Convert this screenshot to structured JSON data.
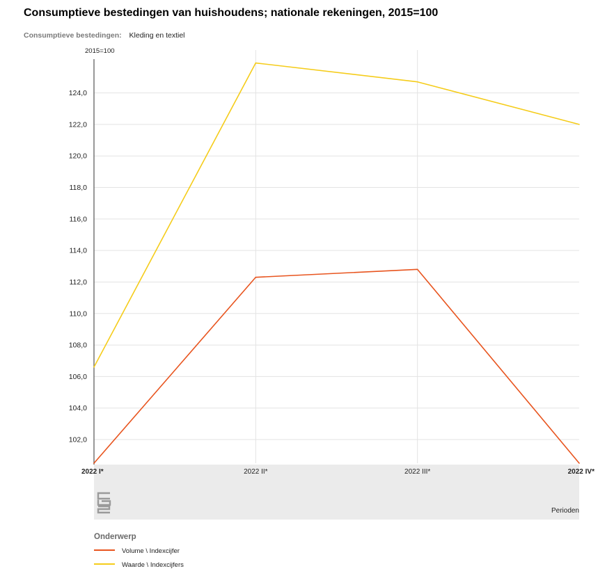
{
  "title": "Consumptieve bestedingen van huishoudens; nationale rekeningen, 2015=100",
  "filter": {
    "label": "Consumptieve bestedingen:",
    "value": "Kleding en textiel"
  },
  "footer": {
    "perioden": "Perioden"
  },
  "legend": {
    "title": "Onderwerp"
  },
  "chart_data": {
    "type": "line",
    "ylabel": "2015=100",
    "xlabel": "Perioden",
    "categories": [
      "2022 I*",
      "2022 II*",
      "2022 III*",
      "2022 IV*"
    ],
    "ylim": [
      100.5,
      126.1
    ],
    "yticks": [
      102,
      104,
      106,
      108,
      110,
      112,
      114,
      116,
      118,
      120,
      122,
      124
    ],
    "ytick_labels": [
      "102,0",
      "104,0",
      "106,0",
      "108,0",
      "110,0",
      "112,0",
      "114,0",
      "116,0",
      "118,0",
      "120,0",
      "122,0",
      "124,0"
    ],
    "grid": true,
    "legend_position": "bottom",
    "series": [
      {
        "name": "Volume \\ Indexcijfer",
        "color": "#e8541e",
        "values": [
          100.5,
          112.3,
          112.8,
          100.5
        ]
      },
      {
        "name": "Waarde \\ Indexcijfers",
        "color": "#f5cc1a",
        "values": [
          106.6,
          125.9,
          124.7,
          122.0
        ]
      }
    ]
  }
}
